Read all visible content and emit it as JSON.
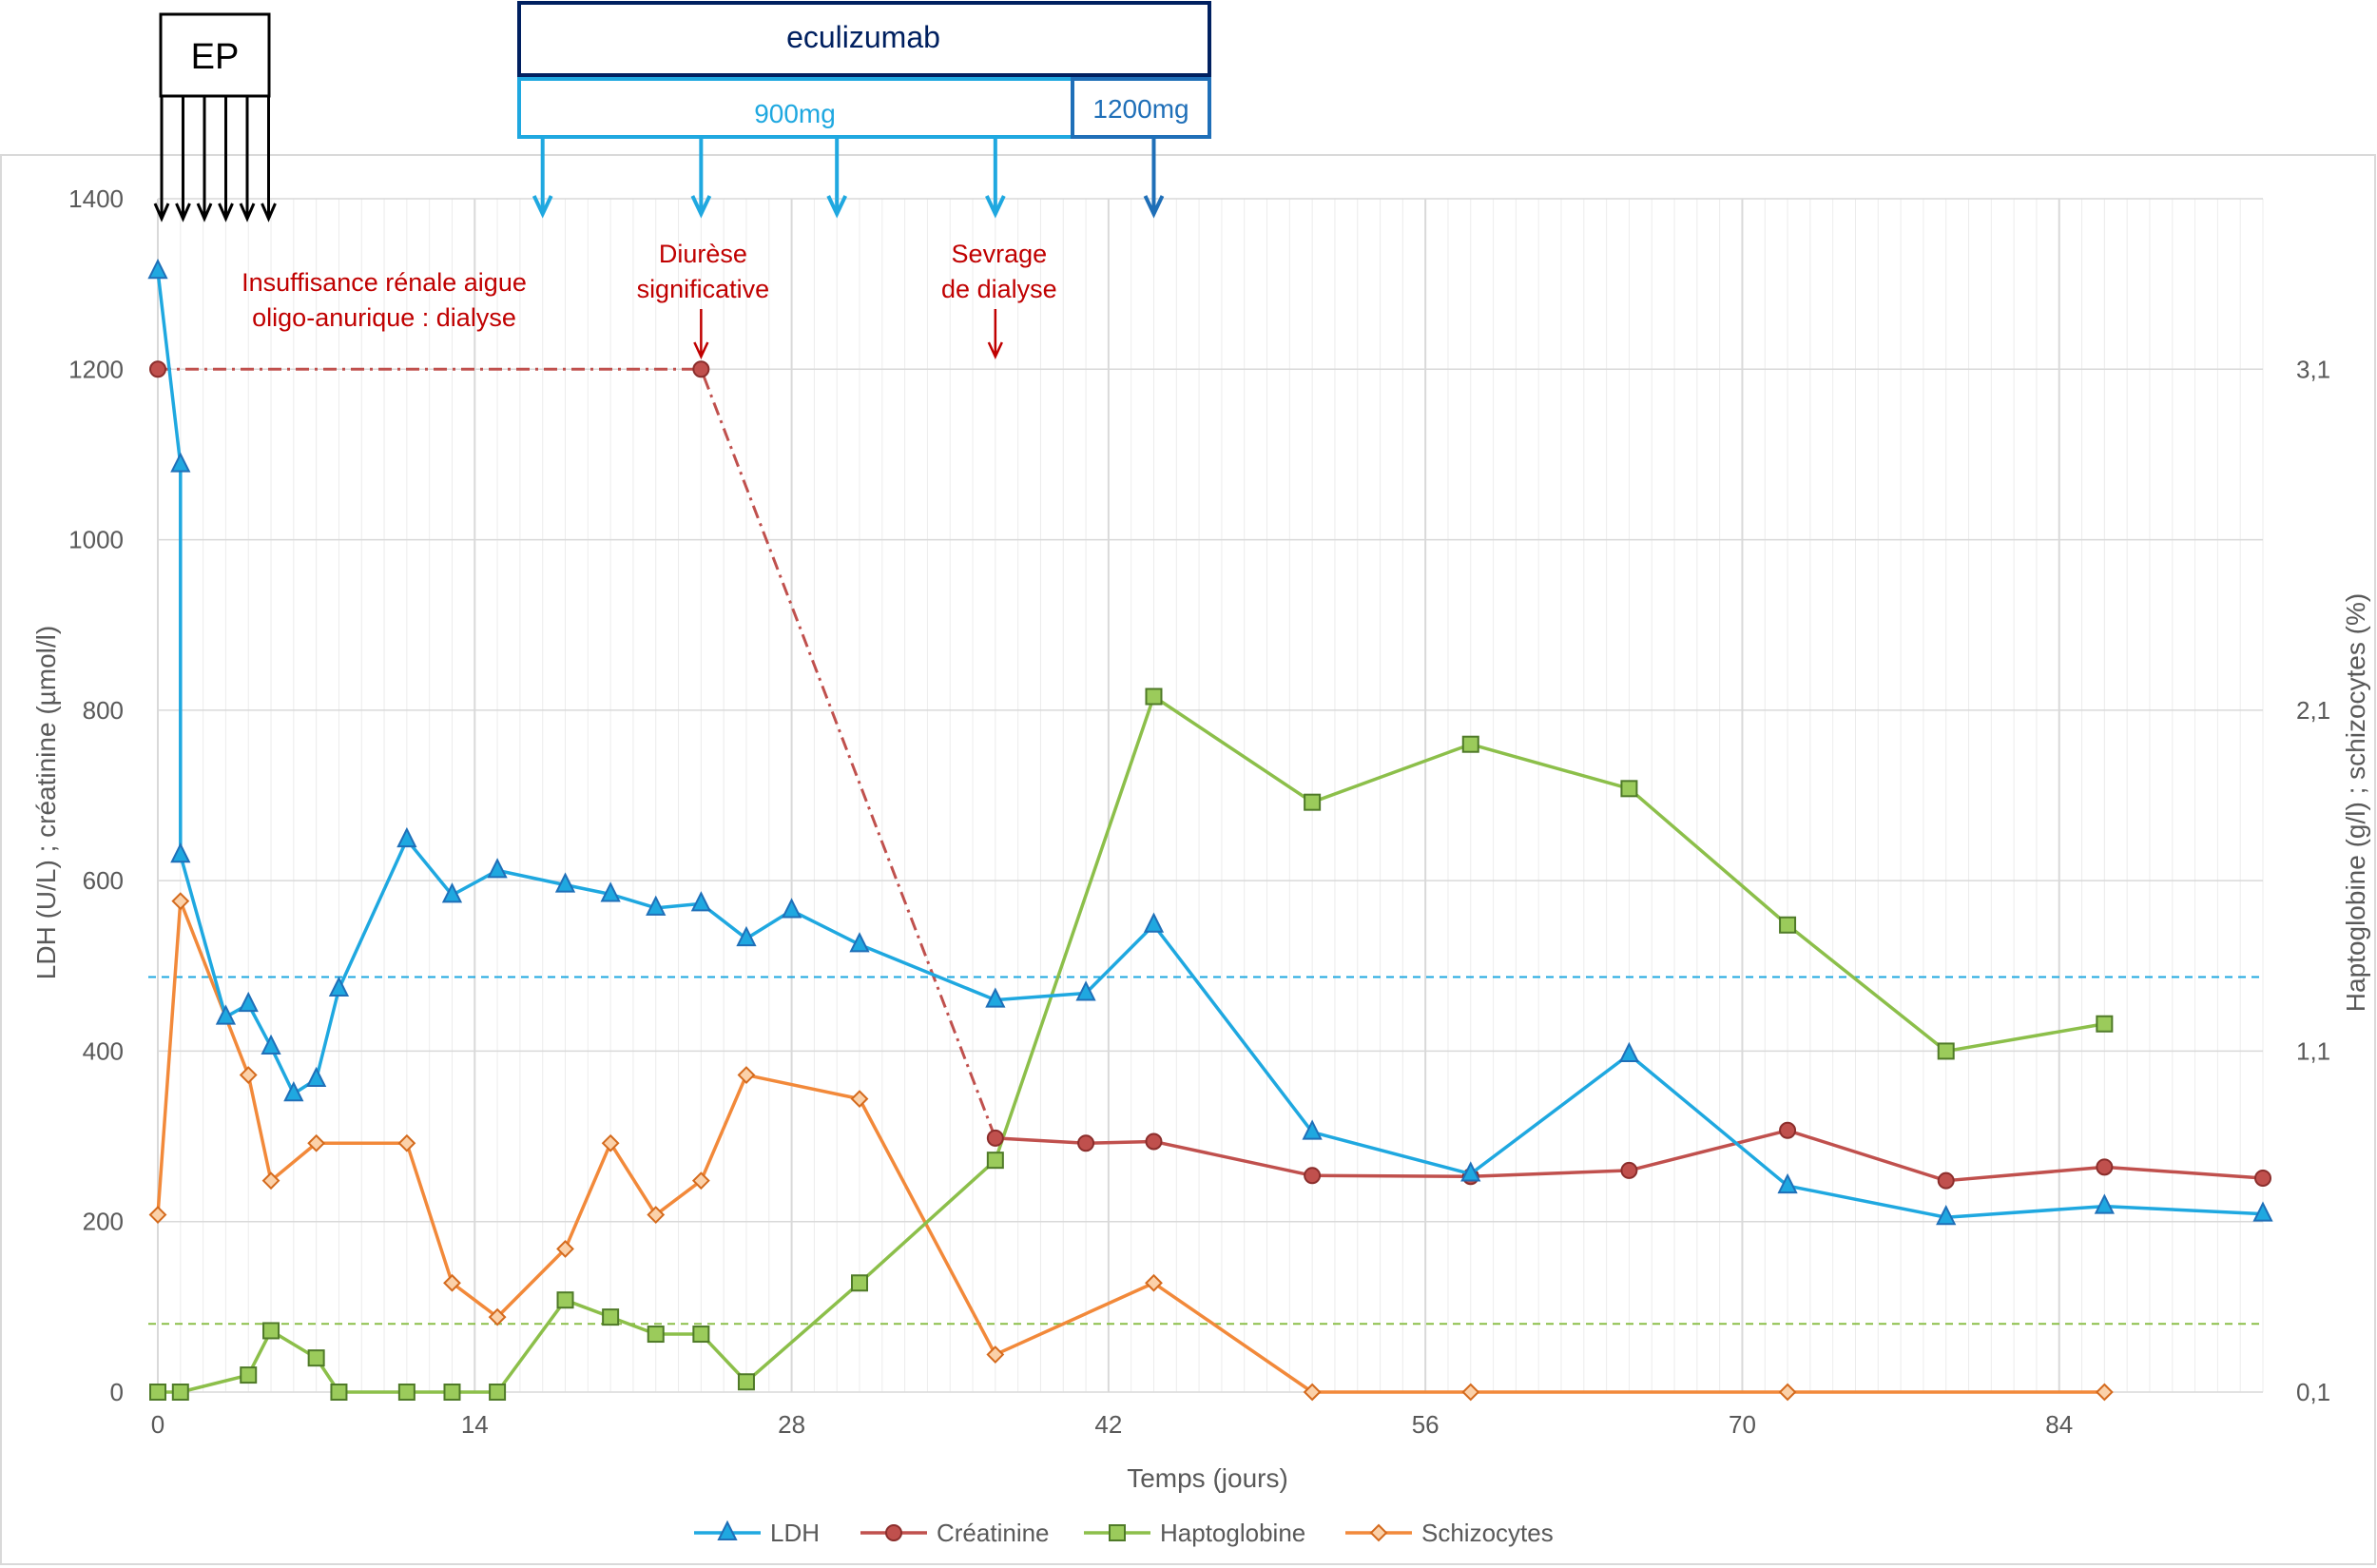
{
  "chart_data": {
    "type": "line",
    "xlabel": "Temps (jours)",
    "ylabel_left": "LDH (U/L) ; créatinine (µmol/l)",
    "ylabel_right": "Haptoglobine (g/l) ; schizocytes (%)",
    "xlim": [
      0,
      93
    ],
    "ylim_left": [
      0,
      1400
    ],
    "ylim_right": [
      0.1,
      3.6
    ],
    "x_ticks": [
      0,
      14,
      28,
      42,
      56,
      70,
      84
    ],
    "y_ticks_left": [
      0,
      200,
      400,
      600,
      800,
      1000,
      1200,
      1400
    ],
    "y_ticks_right": [
      0.1,
      1.1,
      2.1,
      3.1
    ],
    "y_tick_labels_right": [
      "0,1",
      "1,1",
      "2,1",
      "3,1"
    ],
    "grid": true,
    "legend_position": "bottom",
    "colors": {
      "ldh": "#1fa8e0",
      "creatinine": "#c0504d",
      "haptoglobine": "#8cbf4a",
      "schizocytes": "#f2893a",
      "annotation": "#c00000",
      "eculizumab_box": "#002060",
      "dose_900": "#1fa8e0",
      "dose_1200": "#1f6fb8",
      "ep_box": "#000000"
    },
    "series": [
      {
        "name": "LDH",
        "axis": "left",
        "marker": "triangle",
        "x": [
          0,
          1,
          1,
          3,
          4,
          5,
          6,
          7,
          8,
          11,
          13,
          15,
          18,
          20,
          22,
          24,
          26,
          28,
          31,
          37,
          41,
          44,
          51,
          58,
          65,
          72,
          79,
          86,
          93
        ],
        "y": [
          1315,
          1088,
          630,
          440,
          455,
          405,
          350,
          367,
          473,
          648,
          583,
          612,
          595,
          584,
          568,
          573,
          532,
          565,
          525,
          460,
          468,
          548,
          305,
          256,
          396,
          242,
          205,
          218,
          209
        ]
      },
      {
        "name": "Créatinine",
        "axis": "left",
        "marker": "circle",
        "x": [
          37,
          41,
          44,
          51,
          58,
          65,
          72,
          79,
          86,
          93
        ],
        "y": [
          298,
          292,
          294,
          254,
          253,
          260,
          307,
          248,
          264,
          251
        ]
      },
      {
        "name": "Haptoglobine",
        "axis": "right",
        "marker": "square",
        "x": [
          0,
          1,
          4,
          5,
          7,
          8,
          11,
          13,
          15,
          18,
          20,
          22,
          24,
          26,
          31,
          37,
          44,
          51,
          58,
          65,
          72,
          79,
          86
        ],
        "y": [
          0.1,
          0.1,
          0.15,
          0.28,
          0.2,
          0.1,
          0.1,
          0.1,
          0.1,
          0.37,
          0.32,
          0.27,
          0.27,
          0.13,
          0.42,
          0.78,
          2.14,
          1.83,
          2.0,
          1.87,
          1.47,
          1.1,
          1.18
        ]
      },
      {
        "name": "Schizocytes",
        "axis": "right",
        "marker": "diamond",
        "x": [
          0,
          1,
          4,
          5,
          7,
          11,
          13,
          15,
          18,
          20,
          22,
          24,
          26,
          31,
          37,
          44,
          51,
          58,
          72,
          86
        ],
        "y": [
          0.62,
          1.54,
          1.03,
          0.72,
          0.83,
          0.83,
          0.42,
          0.32,
          0.52,
          0.83,
          0.62,
          0.72,
          1.03,
          0.96,
          0.21,
          0.42,
          0.1,
          0.1,
          0.1,
          0.1
        ]
      }
    ],
    "creatinine_dialysis_segment": {
      "x": [
        0,
        24,
        37
      ],
      "y": [
        1200,
        1200,
        298
      ]
    },
    "reference_lines": [
      {
        "axis": "left",
        "y": 487,
        "color": "#1fa8e0"
      },
      {
        "axis": "left",
        "y": 80,
        "color": "#8cbf4a"
      }
    ],
    "annotations": [
      {
        "text_lines": [
          "Insuffisance rénale aigue",
          "oligo-anurique : dialyse"
        ],
        "x": 10
      },
      {
        "text_lines": [
          "Diurèse",
          "significative"
        ],
        "x": 24,
        "arrow": true
      },
      {
        "text_lines": [
          "Sevrage",
          "de dialyse"
        ],
        "x": 37,
        "arrow": true
      }
    ],
    "treatments": {
      "ep_label": "EP",
      "ep_days": [
        0,
        1,
        2,
        3,
        4,
        5
      ],
      "eculizumab_label": "eculizumab",
      "dose_900_label": "900mg",
      "dose_1200_label": "1200mg",
      "dose_900_days": [
        17,
        24,
        30,
        37
      ],
      "dose_1200_days": [
        44
      ]
    }
  }
}
